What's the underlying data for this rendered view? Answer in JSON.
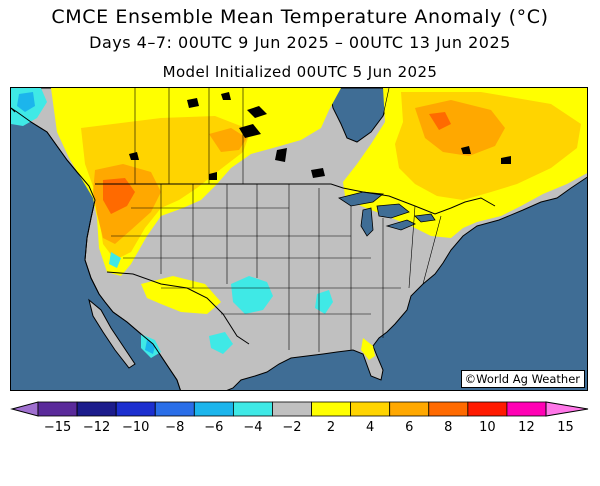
{
  "title": "CMCE Ensemble Mean Temperature Anomaly (°C)",
  "subtitle": "Days 4–7: 00UTC 9 Jun 2025 – 00UTC 13 Jun 2025",
  "init_line": "Model Initialized 00UTC 5 Jun 2025",
  "watermark": "©World Ag Weather",
  "colors": {
    "ocean": "#3f6d95",
    "near_normal": "#c0c0c0",
    "borders": "#000000"
  },
  "legend": {
    "ticks": [
      "−15",
      "−12",
      "−10",
      "−8",
      "−6",
      "−4",
      "−2",
      "2",
      "4",
      "6",
      "8",
      "10",
      "12",
      "15"
    ],
    "bins": [
      {
        "from": -15,
        "to": -12,
        "color": "#5a2a9a"
      },
      {
        "from": -12,
        "to": -10,
        "color": "#1c1c8c"
      },
      {
        "from": -10,
        "to": -8,
        "color": "#1c2fcf"
      },
      {
        "from": -8,
        "to": -6,
        "color": "#2a6ee8"
      },
      {
        "from": -6,
        "to": -4,
        "color": "#1cb5ec"
      },
      {
        "from": -4,
        "to": -2,
        "color": "#3fe9e6"
      },
      {
        "from": -2,
        "to": 2,
        "color": "#c0c0c0"
      },
      {
        "from": 2,
        "to": 4,
        "color": "#ffff00"
      },
      {
        "from": 4,
        "to": 6,
        "color": "#ffd400"
      },
      {
        "from": 6,
        "to": 8,
        "color": "#ffa800"
      },
      {
        "from": 8,
        "to": 10,
        "color": "#ff6a00"
      },
      {
        "from": 10,
        "to": 12,
        "color": "#ff1a00"
      },
      {
        "from": 12,
        "to": 15,
        "color": "#ff00b4"
      }
    ],
    "below_min_color": "#a070d0",
    "above_max_color": "#ff77e8"
  }
}
